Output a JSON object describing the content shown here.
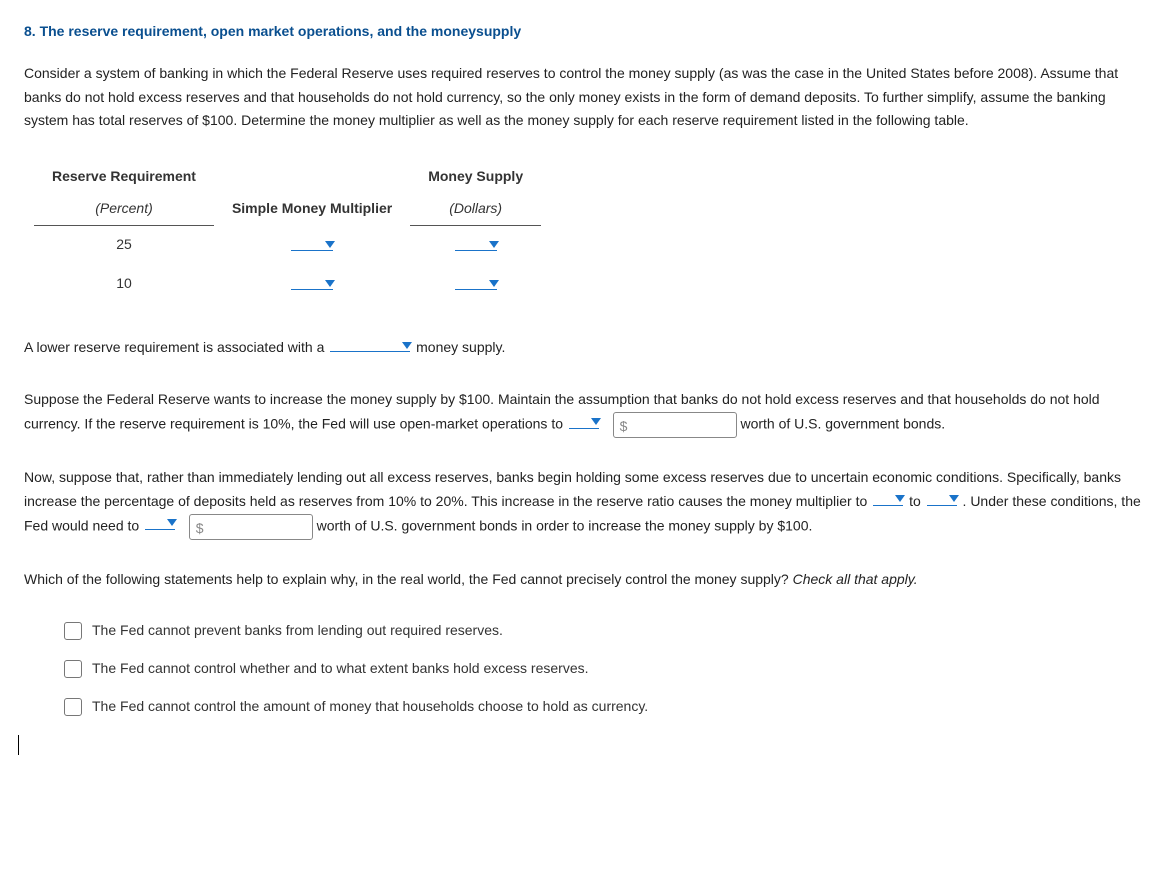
{
  "title": "8. The reserve requirement, open market operations, and the moneysupply",
  "intro": "Consider a system of banking in which the Federal Reserve uses required reserves to control the money supply (as was the case in the United States before 2008). Assume that banks do not hold excess reserves and that households do not hold currency, so the only money exists in the form of demand deposits. To further simplify, assume the banking system has total reserves of $100. Determine the money multiplier as well as the money supply for each reserve requirement listed in the following table.",
  "table": {
    "col1_header": "Reserve Requirement",
    "col1_sub": "(Percent)",
    "col2_header": "Simple Money Multiplier",
    "col3_header": "Money Supply",
    "col3_sub": "(Dollars)",
    "rows": [
      {
        "percent": "25"
      },
      {
        "percent": "10"
      }
    ]
  },
  "p2": {
    "pre": "A lower reserve requirement is associated with a ",
    "post": " money supply."
  },
  "p3": {
    "t1": "Suppose the Federal Reserve wants to increase the money supply by $100. Maintain the assumption that banks do not hold excess reserves and that households do not hold currency. If the reserve requirement is 10%, the Fed will use open-market operations to ",
    "dollar": "$",
    "t2": " worth of U.S. government bonds."
  },
  "p4": {
    "t1": "Now, suppose that, rather than immediately lending out all excess reserves, banks begin holding some excess reserves due to uncertain economic conditions. Specifically, banks increase the percentage of deposits held as reserves from 10% to 20%. This increase in the reserve ratio causes the money multiplier to ",
    "to": " to ",
    "t2": " . Under these conditions, the Fed would need to ",
    "dollar": "$",
    "t3": " worth of U.S. government bonds in order to increase the money supply by $100."
  },
  "p5": {
    "q": "Which of the following statements help to explain why, in the real world, the Fed cannot precisely control the money supply? ",
    "hint": "Check all that apply."
  },
  "options": [
    "The Fed cannot prevent banks from lending out required reserves.",
    "The Fed cannot control whether and to what extent banks hold excess reserves.",
    "The Fed cannot control the amount of money that households choose to hold as currency."
  ],
  "colors": {
    "title": "#0a4f8f",
    "dropdown_accent": "#1a73c9"
  }
}
